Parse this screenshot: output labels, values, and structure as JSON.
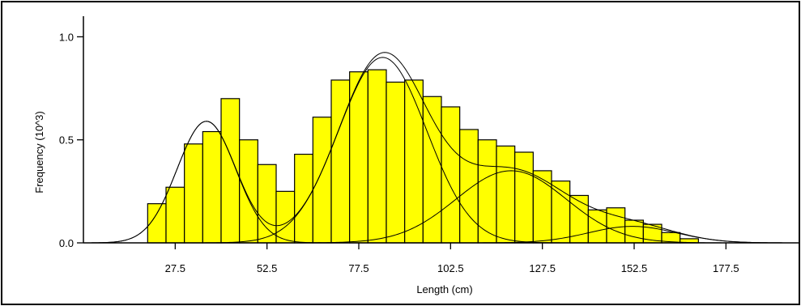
{
  "chart_data": {
    "type": "bar",
    "xlabel": "Length (cm)",
    "ylabel": "Frequency (10^3)",
    "xlim": [
      2.5,
      197.5
    ],
    "ylim": [
      0,
      1.1
    ],
    "x_ticks": [
      27.5,
      52.5,
      77.5,
      102.5,
      127.5,
      152.5,
      177.5
    ],
    "x_tick_labels": [
      "27.5",
      "52.5",
      "77.5",
      "102.5",
      "127.5",
      "152.5",
      "177.5"
    ],
    "y_ticks": [
      0.0,
      0.5,
      1.0
    ],
    "y_tick_labels": [
      "0.0",
      "0.5",
      "1.0"
    ],
    "bar_width": 5,
    "bin_centers": [
      22.5,
      27.5,
      32.5,
      37.5,
      42.5,
      47.5,
      52.5,
      57.5,
      62.5,
      67.5,
      72.5,
      77.5,
      82.5,
      87.5,
      92.5,
      97.5,
      102.5,
      107.5,
      112.5,
      117.5,
      122.5,
      127.5,
      132.5,
      137.5,
      142.5,
      147.5,
      152.5,
      157.5,
      162.5,
      167.5
    ],
    "values": [
      0.19,
      0.27,
      0.48,
      0.54,
      0.7,
      0.5,
      0.38,
      0.25,
      0.43,
      0.61,
      0.79,
      0.83,
      0.84,
      0.78,
      0.79,
      0.71,
      0.66,
      0.55,
      0.5,
      0.47,
      0.44,
      0.35,
      0.3,
      0.23,
      0.16,
      0.17,
      0.11,
      0.09,
      0.05,
      0.02
    ],
    "bar_color": "#ffff00",
    "fitted_components": [
      {
        "mean": 36,
        "sd": 8,
        "peak": 0.59
      },
      {
        "mean": 84,
        "sd": 12,
        "peak": 0.9
      },
      {
        "mean": 119,
        "sd": 15,
        "peak": 0.35
      },
      {
        "mean": 152,
        "sd": 12,
        "peak": 0.08
      }
    ],
    "grid": false
  }
}
